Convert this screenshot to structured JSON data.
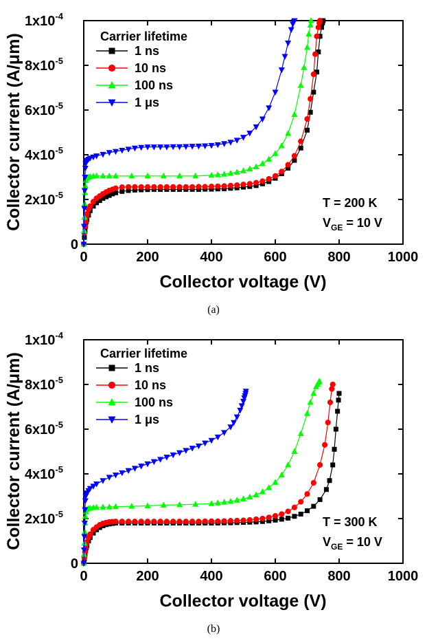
{
  "chart_data": [
    {
      "type": "scatter",
      "panel_label": "(a)",
      "xlabel": "Collector voltage (V)",
      "ylabel": "Collector current (A/μm)",
      "xlim": [
        0,
        1000
      ],
      "ylim": [
        0,
        0.0001
      ],
      "x_ticks": [
        "0",
        "200",
        "400",
        "600",
        "800",
        "1000"
      ],
      "y_ticks": [
        {
          "mantissa": "0",
          "exp": ""
        },
        {
          "mantissa": "2x10",
          "exp": "-5"
        },
        {
          "mantissa": "4x10",
          "exp": "-5"
        },
        {
          "mantissa": "6x10",
          "exp": "-5"
        },
        {
          "mantissa": "8x10",
          "exp": "-5"
        },
        {
          "mantissa": "1x10",
          "exp": "-4"
        }
      ],
      "legend_title": "Carrier lifetime",
      "legend_position": "top-left",
      "annotations": {
        "line1": "T = 200 K",
        "line2_prefix": "V",
        "line2_sub": "GE",
        "line2_suffix": " = 10 V"
      },
      "grid": false,
      "series": [
        {
          "name": "1 ns",
          "color": "#000000",
          "marker": "square",
          "x": [
            0,
            2,
            4,
            6,
            8,
            10,
            15,
            20,
            30,
            40,
            50,
            60,
            70,
            80,
            90,
            100,
            120,
            140,
            160,
            180,
            200,
            220,
            240,
            260,
            280,
            300,
            320,
            340,
            360,
            380,
            400,
            420,
            440,
            460,
            480,
            500,
            520,
            540,
            560,
            580,
            600,
            620,
            640,
            660,
            680,
            700,
            710,
            720,
            730,
            735,
            740,
            745,
            748,
            750
          ],
          "y": [
            0,
            3e-06,
            6e-06,
            8e-06,
            1e-05,
            1.1e-05,
            1.3e-05,
            1.5e-05,
            1.7e-05,
            1.85e-05,
            1.95e-05,
            2.05e-05,
            2.12e-05,
            2.18e-05,
            2.25e-05,
            2.3e-05,
            2.36e-05,
            2.4e-05,
            2.42e-05,
            2.43e-05,
            2.44e-05,
            2.45e-05,
            2.45e-05,
            2.45e-05,
            2.45e-05,
            2.45e-05,
            2.45e-05,
            2.45e-05,
            2.45e-05,
            2.46e-05,
            2.46e-05,
            2.47e-05,
            2.48e-05,
            2.5e-05,
            2.52e-05,
            2.55e-05,
            2.58e-05,
            2.62e-05,
            2.7e-05,
            2.8e-05,
            2.95e-05,
            3.15e-05,
            3.4e-05,
            3.75e-05,
            4.3e-05,
            5.1e-05,
            5.9e-05,
            6.8e-05,
            7.7e-05,
            8.6e-05,
            9.3e-05,
            9.7e-05,
            9.9e-05,
            0.0001
          ]
        },
        {
          "name": "10 ns",
          "color": "#ff0000",
          "marker": "circle",
          "x": [
            0,
            2,
            4,
            6,
            8,
            10,
            15,
            20,
            30,
            40,
            50,
            60,
            70,
            80,
            90,
            100,
            120,
            140,
            160,
            180,
            200,
            220,
            240,
            260,
            280,
            300,
            320,
            340,
            360,
            380,
            400,
            420,
            440,
            460,
            480,
            500,
            520,
            540,
            560,
            580,
            600,
            620,
            640,
            660,
            680,
            700,
            710,
            720,
            725,
            730,
            735,
            738,
            740
          ],
          "y": [
            0,
            5e-06,
            8e-06,
            1e-05,
            1.2e-05,
            1.35e-05,
            1.55e-05,
            1.7e-05,
            1.9e-05,
            2.05e-05,
            2.15e-05,
            2.25e-05,
            2.33e-05,
            2.4e-05,
            2.45e-05,
            2.5e-05,
            2.55e-05,
            2.56e-05,
            2.56e-05,
            2.56e-05,
            2.56e-05,
            2.56e-05,
            2.56e-05,
            2.56e-05,
            2.56e-05,
            2.56e-05,
            2.56e-05,
            2.56e-05,
            2.57e-05,
            2.57e-05,
            2.58e-05,
            2.59e-05,
            2.6e-05,
            2.62e-05,
            2.64e-05,
            2.67e-05,
            2.7e-05,
            2.75e-05,
            2.82e-05,
            2.92e-05,
            3.05e-05,
            3.25e-05,
            3.55e-05,
            3.95e-05,
            4.6e-05,
            5.6e-05,
            6.5e-05,
            7.6e-05,
            8.5e-05,
            9.3e-05,
            9.7e-05,
            9.9e-05,
            0.0001
          ]
        },
        {
          "name": "100 ns",
          "color": "#00ff00",
          "marker": "triangle-up",
          "x": [
            0,
            1,
            2,
            3,
            4,
            5,
            7,
            10,
            15,
            20,
            30,
            40,
            60,
            80,
            100,
            150,
            200,
            250,
            300,
            350,
            400,
            420,
            440,
            460,
            480,
            500,
            520,
            540,
            560,
            580,
            600,
            620,
            640,
            660,
            680,
            690,
            700,
            705,
            710,
            712
          ],
          "y": [
            0,
            6e-06,
            1.2e-05,
            1.8e-05,
            2.3e-05,
            2.6e-05,
            2.85e-05,
            2.95e-05,
            3e-05,
            3.02e-05,
            3.04e-05,
            3.05e-05,
            3.05e-05,
            3.05e-05,
            3.05e-05,
            3.05e-05,
            3.05e-05,
            3.05e-05,
            3.05e-05,
            3.05e-05,
            3.08e-05,
            3.1e-05,
            3.13e-05,
            3.17e-05,
            3.22e-05,
            3.28e-05,
            3.36e-05,
            3.46e-05,
            3.6e-05,
            3.8e-05,
            4.05e-05,
            4.4e-05,
            4.95e-05,
            5.8e-05,
            7.1e-05,
            7.9e-05,
            8.8e-05,
            9.4e-05,
            9.8e-05,
            0.0001
          ]
        },
        {
          "name": "1 μs",
          "color": "#0000ff",
          "marker": "triangle-down",
          "x": [
            0,
            1,
            2,
            3,
            4,
            5,
            6,
            8,
            10,
            15,
            20,
            30,
            40,
            60,
            80,
            100,
            120,
            140,
            160,
            180,
            200,
            220,
            240,
            260,
            280,
            300,
            320,
            340,
            360,
            380,
            400,
            420,
            440,
            460,
            480,
            500,
            520,
            540,
            560,
            580,
            600,
            620,
            630,
            640,
            650,
            655,
            658,
            660
          ],
          "y": [
            0,
            8e-06,
            1.6e-05,
            2.4e-05,
            3e-05,
            3.4e-05,
            3.6e-05,
            3.7e-05,
            3.75e-05,
            3.8e-05,
            3.85e-05,
            3.9e-05,
            3.95e-05,
            4.02e-05,
            4.1e-05,
            4.15e-05,
            4.2e-05,
            4.25e-05,
            4.3e-05,
            4.33e-05,
            4.35e-05,
            4.35e-05,
            4.35e-05,
            4.35e-05,
            4.36e-05,
            4.36e-05,
            4.37e-05,
            4.38e-05,
            4.39e-05,
            4.4e-05,
            4.42e-05,
            4.45e-05,
            4.5e-05,
            4.56e-05,
            4.65e-05,
            4.78e-05,
            4.97e-05,
            5.25e-05,
            5.6e-05,
            6.1e-05,
            6.8e-05,
            7.8e-05,
            8.4e-05,
            9e-05,
            9.6e-05,
            9.85e-05,
            9.95e-05,
            0.0001
          ]
        }
      ]
    },
    {
      "type": "scatter",
      "panel_label": "(b)",
      "xlabel": "Collector voltage (V)",
      "ylabel": "Collector current (A/μm)",
      "xlim": [
        0,
        1000
      ],
      "ylim": [
        0,
        0.0001
      ],
      "x_ticks": [
        "0",
        "200",
        "400",
        "600",
        "800",
        "1000"
      ],
      "y_ticks": [
        {
          "mantissa": "0",
          "exp": ""
        },
        {
          "mantissa": "2x10",
          "exp": "-5"
        },
        {
          "mantissa": "4x10",
          "exp": "-5"
        },
        {
          "mantissa": "6x10",
          "exp": "-5"
        },
        {
          "mantissa": "8x10",
          "exp": "-5"
        },
        {
          "mantissa": "1x10",
          "exp": "-4"
        }
      ],
      "legend_title": "Carrier lifetime",
      "legend_position": "top-left",
      "annotations": {
        "line1": "T = 300 K",
        "line2_prefix": "V",
        "line2_sub": "GE",
        "line2_suffix": " = 10 V"
      },
      "grid": false,
      "series": [
        {
          "name": "1 ns",
          "color": "#000000",
          "marker": "square",
          "x": [
            0,
            2,
            4,
            6,
            8,
            10,
            15,
            20,
            30,
            40,
            50,
            60,
            70,
            80,
            90,
            100,
            120,
            140,
            160,
            180,
            200,
            220,
            240,
            260,
            280,
            300,
            320,
            340,
            360,
            380,
            400,
            420,
            440,
            460,
            480,
            500,
            520,
            540,
            560,
            580,
            600,
            620,
            640,
            660,
            680,
            700,
            720,
            740,
            760,
            770,
            780,
            785,
            790,
            795,
            798,
            800
          ],
          "y": [
            0,
            2e-06,
            4e-06,
            5.5e-06,
            7e-06,
            8e-06,
            1e-05,
            1.15e-05,
            1.35e-05,
            1.5e-05,
            1.6e-05,
            1.68e-05,
            1.73e-05,
            1.76e-05,
            1.78e-05,
            1.8e-05,
            1.8e-05,
            1.8e-05,
            1.8e-05,
            1.8e-05,
            1.8e-05,
            1.8e-05,
            1.8e-05,
            1.8e-05,
            1.8e-05,
            1.8e-05,
            1.8e-05,
            1.8e-05,
            1.8e-05,
            1.8e-05,
            1.8e-05,
            1.8e-05,
            1.81e-05,
            1.81e-05,
            1.82e-05,
            1.83e-05,
            1.84e-05,
            1.85e-05,
            1.87e-05,
            1.9e-05,
            1.93e-05,
            1.97e-05,
            2.02e-05,
            2.1e-05,
            2.2e-05,
            2.35e-05,
            2.55e-05,
            2.85e-05,
            3.3e-05,
            3.7e-05,
            4.4e-05,
            5.1e-05,
            6e-05,
            6.8e-05,
            7.3e-05,
            7.6e-05
          ]
        },
        {
          "name": "10 ns",
          "color": "#ff0000",
          "marker": "circle",
          "x": [
            0,
            2,
            4,
            6,
            8,
            10,
            15,
            20,
            30,
            40,
            50,
            60,
            70,
            80,
            90,
            100,
            120,
            140,
            160,
            180,
            200,
            220,
            240,
            260,
            280,
            300,
            320,
            340,
            360,
            380,
            400,
            420,
            440,
            460,
            480,
            500,
            520,
            540,
            560,
            580,
            600,
            620,
            640,
            660,
            680,
            700,
            720,
            740,
            755,
            765,
            772,
            777,
            780
          ],
          "y": [
            0,
            2.5e-06,
            5e-06,
            7e-06,
            8.5e-06,
            9.5e-06,
            1.15e-05,
            1.3e-05,
            1.5e-05,
            1.62e-05,
            1.72e-05,
            1.78e-05,
            1.82e-05,
            1.85e-05,
            1.86e-05,
            1.87e-05,
            1.87e-05,
            1.87e-05,
            1.87e-05,
            1.87e-05,
            1.87e-05,
            1.87e-05,
            1.87e-05,
            1.87e-05,
            1.87e-05,
            1.87e-05,
            1.87e-05,
            1.87e-05,
            1.87e-05,
            1.88e-05,
            1.88e-05,
            1.88e-05,
            1.89e-05,
            1.9e-05,
            1.91e-05,
            1.92e-05,
            1.94e-05,
            1.97e-05,
            2e-05,
            2.05e-05,
            2.12e-05,
            2.2e-05,
            2.32e-05,
            2.5e-05,
            2.75e-05,
            3.1e-05,
            3.6e-05,
            4.4e-05,
            5.3e-05,
            6.3e-05,
            7.2e-05,
            7.8e-05,
            8e-05
          ]
        },
        {
          "name": "100 ns",
          "color": "#00ff00",
          "marker": "triangle-up",
          "x": [
            0,
            1,
            2,
            3,
            4,
            5,
            7,
            10,
            15,
            20,
            30,
            40,
            60,
            80,
            100,
            150,
            200,
            250,
            300,
            350,
            400,
            420,
            440,
            460,
            480,
            500,
            520,
            540,
            560,
            580,
            600,
            620,
            640,
            660,
            680,
            700,
            710,
            720,
            728,
            733,
            736,
            738
          ],
          "y": [
            0,
            4e-06,
            9e-06,
            1.4e-05,
            1.8e-05,
            2.1e-05,
            2.3e-05,
            2.4e-05,
            2.45e-05,
            2.47e-05,
            2.49e-05,
            2.5e-05,
            2.51e-05,
            2.52e-05,
            2.53e-05,
            2.55e-05,
            2.57e-05,
            2.6e-05,
            2.62e-05,
            2.64e-05,
            2.67e-05,
            2.7e-05,
            2.73e-05,
            2.77e-05,
            2.82e-05,
            2.88e-05,
            2.96e-05,
            3.06e-05,
            3.2e-05,
            3.38e-05,
            3.62e-05,
            3.95e-05,
            4.4e-05,
            5e-05,
            5.8e-05,
            6.7e-05,
            7.2e-05,
            7.6e-05,
            7.9e-05,
            8e-05,
            8.1e-05,
            8.15e-05
          ]
        },
        {
          "name": "1 μs",
          "color": "#0000ff",
          "marker": "triangle-down",
          "x": [
            0,
            1,
            2,
            3,
            4,
            5,
            6,
            8,
            10,
            15,
            20,
            30,
            40,
            60,
            80,
            100,
            120,
            140,
            160,
            180,
            200,
            220,
            240,
            260,
            280,
            300,
            320,
            340,
            360,
            380,
            400,
            420,
            440,
            460,
            470,
            480,
            490,
            495,
            500,
            503,
            505,
            507,
            508
          ],
          "y": [
            0,
            6e-06,
            1.2e-05,
            1.8e-05,
            2.4e-05,
            2.8e-05,
            3e-05,
            3.1e-05,
            3.15e-05,
            3.25e-05,
            3.35e-05,
            3.45e-05,
            3.55e-05,
            3.7e-05,
            3.85e-05,
            3.95e-05,
            4.05e-05,
            4.15e-05,
            4.25e-05,
            4.35e-05,
            4.45e-05,
            4.55e-05,
            4.65e-05,
            4.75e-05,
            4.85e-05,
            4.95e-05,
            5.05e-05,
            5.15e-05,
            5.25e-05,
            5.38e-05,
            5.5e-05,
            5.65e-05,
            5.85e-05,
            6.1e-05,
            6.3e-05,
            6.55e-05,
            6.85e-05,
            7.05e-05,
            7.25e-05,
            7.4e-05,
            7.5e-05,
            7.6e-05,
            7.7e-05
          ]
        }
      ]
    }
  ]
}
